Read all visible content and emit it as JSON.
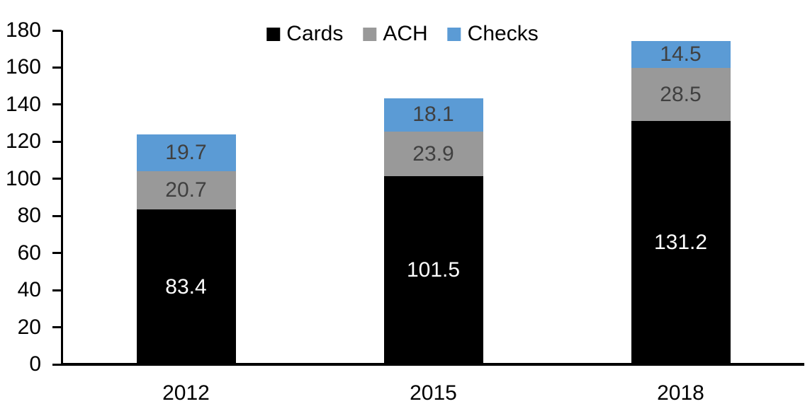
{
  "chart_data": {
    "type": "bar",
    "stacked": true,
    "title": "",
    "xlabel": "",
    "ylabel": "",
    "categories": [
      "2012",
      "2015",
      "2018"
    ],
    "series": [
      {
        "name": "Cards",
        "color": "#000000",
        "label_color": "#ffffff",
        "values": [
          83.4,
          101.5,
          131.2
        ]
      },
      {
        "name": "ACH",
        "color": "#999999",
        "label_color": "#404040",
        "values": [
          20.7,
          23.9,
          28.5
        ]
      },
      {
        "name": "Checks",
        "color": "#5B9BD5",
        "label_color": "#404040",
        "values": [
          19.7,
          18.1,
          14.5
        ]
      }
    ],
    "ylim": [
      0,
      180
    ],
    "ytick_step": 20,
    "yticks": [
      0,
      20,
      40,
      60,
      80,
      100,
      120,
      140,
      160,
      180
    ],
    "grid": false,
    "legend_position": "top",
    "data_labels": true
  },
  "colors": {
    "background": "#ffffff",
    "axis": "#000000",
    "tick_label": "#000000"
  }
}
